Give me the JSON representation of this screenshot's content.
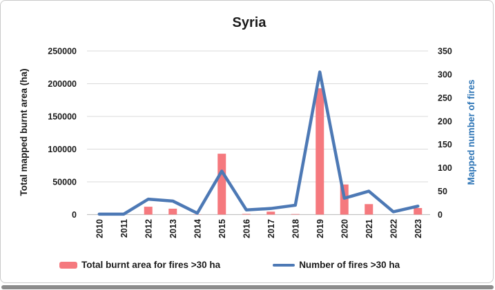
{
  "window": {
    "background": "#ffffff",
    "card_border_color": "#c9c9c9",
    "bottom_bar_color": "#8c8c8c"
  },
  "chart_data": {
    "type": "combo",
    "title": "Syria",
    "categories": [
      "2010",
      "2011",
      "2012",
      "2013",
      "2014",
      "2015",
      "2016",
      "2017",
      "2018",
      "2019",
      "2020",
      "2021",
      "2022",
      "2023"
    ],
    "series": [
      {
        "name": "Total burnt area for fires >30 ha",
        "type": "bar",
        "axis": "left",
        "color": "#f5797e",
        "values": [
          0,
          0,
          12000,
          9000,
          400,
          93000,
          1000,
          4500,
          800,
          193000,
          46000,
          16000,
          0,
          10000
        ]
      },
      {
        "name": "Number of fires >30 ha",
        "type": "line",
        "axis": "right",
        "color": "#4d79b5",
        "values": [
          1,
          1,
          33,
          29,
          3,
          93,
          10,
          13,
          20,
          305,
          35,
          50,
          6,
          18
        ]
      }
    ],
    "left_axis": {
      "label": "Total mapped burnt area (ha)",
      "min": 0,
      "max": 250000,
      "ticks": [
        0,
        50000,
        100000,
        150000,
        200000,
        250000
      ],
      "label_color": "#1a1a1a",
      "tick_color": "#1a1a1a"
    },
    "right_axis": {
      "label": "Mapped number of fires",
      "min": 0,
      "max": 350,
      "ticks": [
        0,
        50,
        100,
        150,
        200,
        250,
        300,
        350
      ],
      "label_color": "#2e75b6",
      "tick_color": "#1a1a1a"
    },
    "grid": true,
    "gridline_color": "#d9d9d9",
    "axisline_color": "#c2c2c2",
    "title_color": "#1a1a1a",
    "legend_position": "bottom"
  }
}
